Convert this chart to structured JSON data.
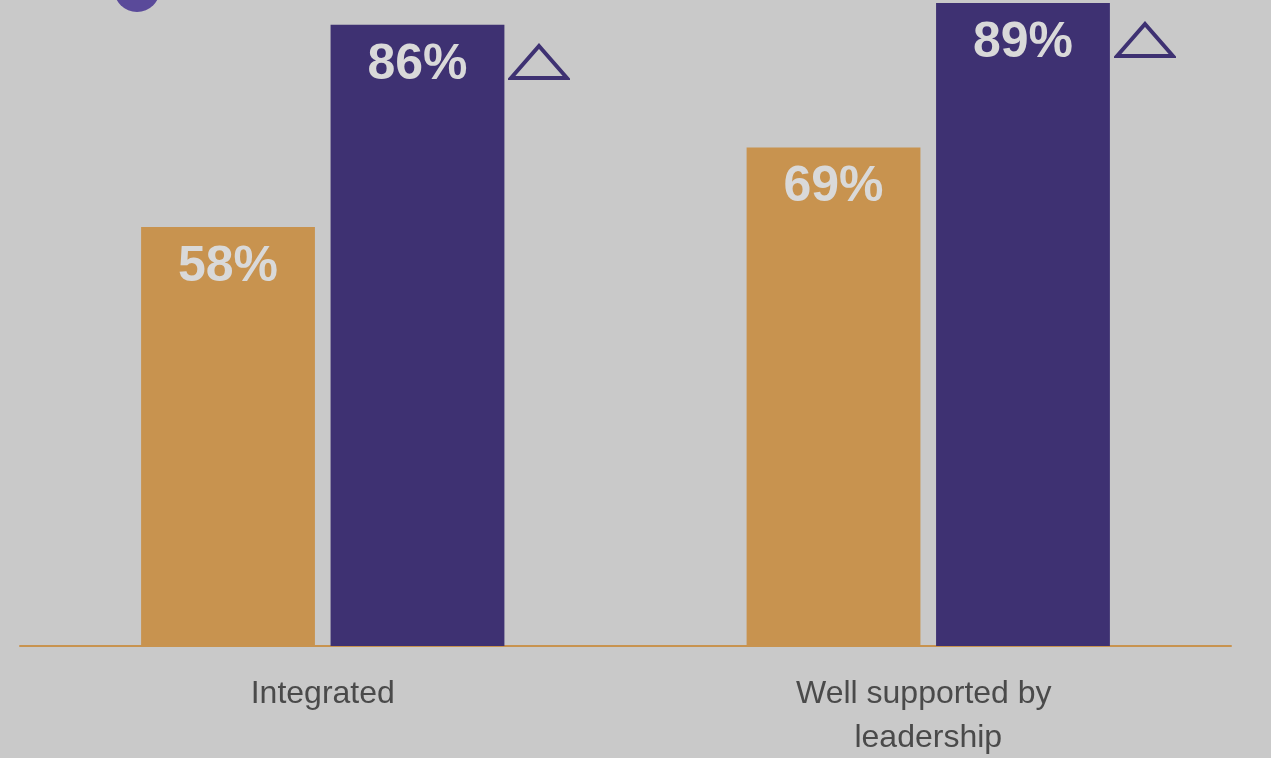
{
  "chart_data": {
    "type": "bar",
    "categories": [
      "Integrated",
      "Well supported by leadership"
    ],
    "series": [
      {
        "color": "#c8934f",
        "values": [
          58,
          69
        ],
        "value_labels": [
          "58%",
          "69%"
        ]
      },
      {
        "color": "#3e3172",
        "values": [
          86,
          89
        ],
        "value_labels": [
          "86%",
          "89%"
        ]
      }
    ],
    "ylim": [
      0,
      89
    ]
  }
}
